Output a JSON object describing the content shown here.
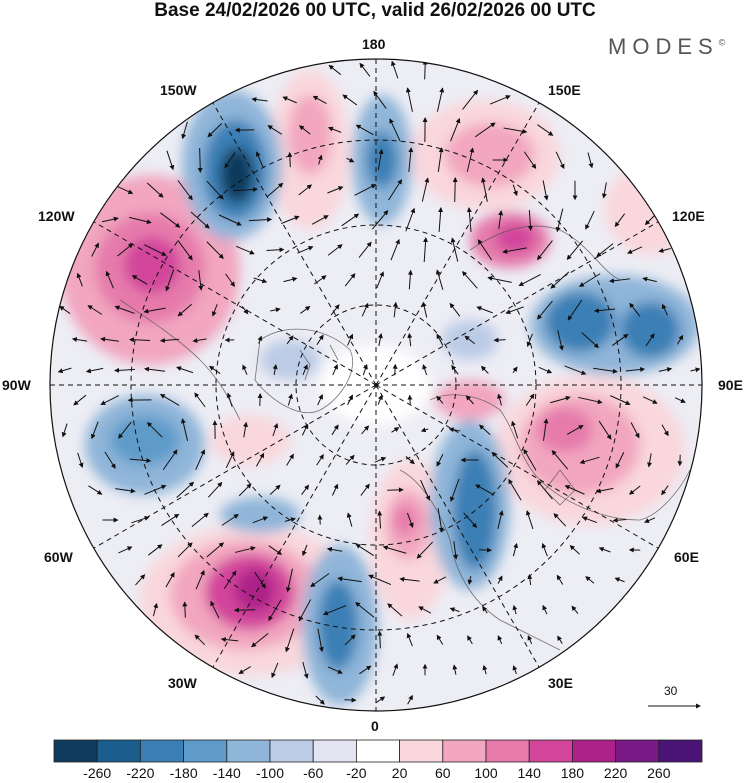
{
  "title": "Base 24/02/2026 00 UTC, valid 26/02/2026 00 UTC",
  "brand": {
    "name": "MODES",
    "mark": "©"
  },
  "meridian_labels": {
    "top": "180",
    "top_left": "150W",
    "top_right": "150E",
    "upper_left": "120W",
    "upper_right": "120E",
    "left": "90W",
    "right": "90E",
    "lower_left": "60W",
    "lower_right": "60E",
    "bottom_left": "30W",
    "bottom_right": "30E",
    "bottom": "0"
  },
  "reference_vector": {
    "label": "30"
  },
  "colorbar": {
    "ticks": [
      "-260",
      "-220",
      "-180",
      "-140",
      "-100",
      "-60",
      "-20",
      "20",
      "60",
      "100",
      "140",
      "180",
      "220",
      "260"
    ],
    "colors": [
      "#0f3b5c",
      "#1b5d8c",
      "#3a7fb5",
      "#5e9bc9",
      "#8fb5d9",
      "#bccbe6",
      "#e4e4f2",
      "#ffffff",
      "#f9d7dc",
      "#f2a6bf",
      "#e57aab",
      "#d2459b",
      "#ad2288",
      "#7a1a86",
      "#4a1477"
    ]
  }
}
